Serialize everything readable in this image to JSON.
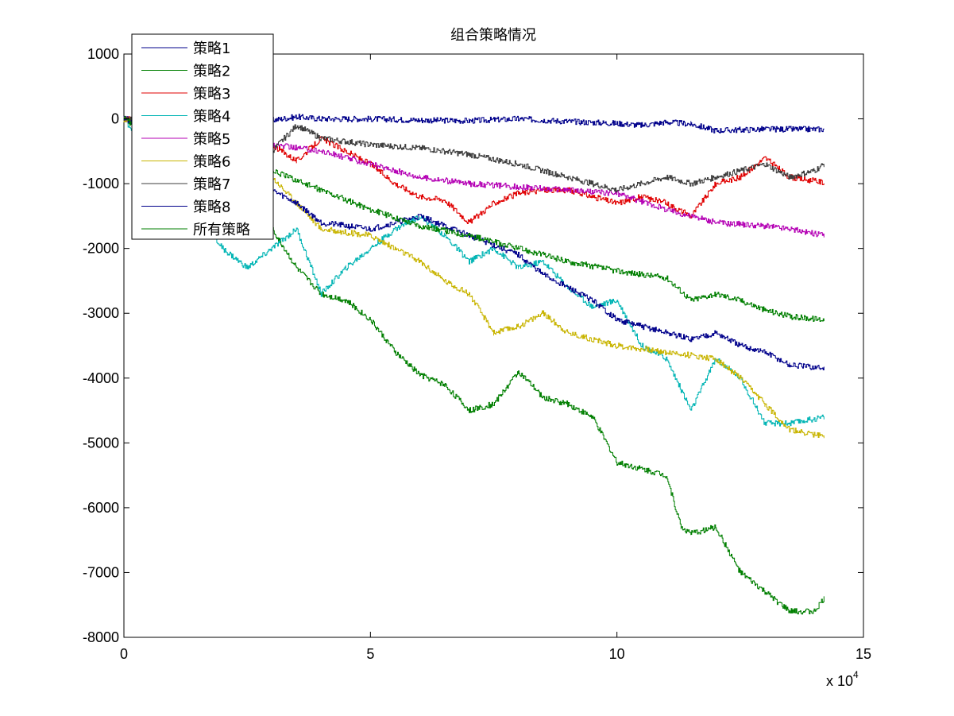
{
  "chart_data": {
    "type": "line",
    "title": "组合策略情况",
    "xlabel": "",
    "ylabel": "",
    "x_exponent_label": "x 10",
    "x_exponent_sup": "4",
    "xlim": [
      0,
      15
    ],
    "ylim": [
      -8000,
      1000
    ],
    "xticks": [
      0,
      5,
      10,
      15
    ],
    "xtick_labels": [
      "0",
      "5",
      "10",
      "15"
    ],
    "yticks": [
      1000,
      0,
      -1000,
      -2000,
      -3000,
      -4000,
      -5000,
      -6000,
      -7000,
      -8000
    ],
    "ytick_labels": [
      "1000",
      "0",
      "-1000",
      "-2000",
      "-3000",
      "-4000",
      "-5000",
      "-6000",
      "-7000",
      "-8000"
    ],
    "grid": false,
    "legend_position": "top-left",
    "series": [
      {
        "name": "策略1",
        "color": "#00008b",
        "x": [
          0,
          0.5,
          1.5,
          3.0,
          3.5,
          4.0,
          5.0,
          6.0,
          7.0,
          8.0,
          9.0,
          10.0,
          10.5,
          11.0,
          11.5,
          12.0,
          13.0,
          14.2
        ],
        "y": [
          0,
          -20,
          -50,
          -20,
          30,
          0,
          0,
          -20,
          -30,
          0,
          -40,
          -70,
          -100,
          -50,
          -80,
          -180,
          -160,
          -160
        ]
      },
      {
        "name": "策略2",
        "color": "#007f00",
        "x": [
          0,
          0.5,
          1.0,
          2.0,
          3.0,
          3.5,
          4.0,
          4.5,
          5.0,
          5.5,
          6.0,
          6.5,
          7.0,
          7.5,
          8.0,
          8.5,
          9.0,
          9.5,
          10.0,
          10.5,
          11.0,
          11.3,
          11.5,
          12.0,
          12.5,
          13.0,
          13.5,
          14.0,
          14.2
        ],
        "y": [
          0,
          -400,
          -800,
          -1200,
          -1700,
          -2300,
          -2700,
          -2800,
          -3100,
          -3600,
          -3950,
          -4100,
          -4500,
          -4400,
          -3900,
          -4300,
          -4400,
          -4600,
          -5300,
          -5400,
          -5500,
          -6300,
          -6400,
          -6300,
          -7000,
          -7300,
          -7600,
          -7600,
          -7400
        ]
      },
      {
        "name": "策略3",
        "color": "#e00000",
        "x": [
          0,
          1.0,
          2.0,
          3.0,
          3.5,
          4.0,
          4.5,
          5.0,
          5.5,
          6.0,
          6.5,
          7.0,
          7.5,
          8.0,
          8.5,
          9.0,
          9.5,
          10.0,
          10.5,
          11.0,
          11.5,
          12.0,
          12.5,
          13.0,
          13.5,
          14.2
        ],
        "y": [
          0,
          -100,
          -250,
          -400,
          -650,
          -300,
          -500,
          -700,
          -1000,
          -1200,
          -1250,
          -1600,
          -1300,
          -1150,
          -1100,
          -1100,
          -1200,
          -1300,
          -1200,
          -1300,
          -1500,
          -1000,
          -900,
          -600,
          -900,
          -980
        ]
      },
      {
        "name": "策略4",
        "color": "#00b4b4",
        "x": [
          0,
          0.5,
          1.0,
          1.5,
          2.0,
          2.5,
          3.0,
          3.5,
          4.0,
          4.5,
          5.0,
          5.5,
          6.0,
          6.5,
          7.0,
          7.5,
          8.0,
          8.5,
          9.0,
          9.5,
          10.0,
          10.5,
          11.0,
          11.5,
          12.0,
          12.5,
          13.0,
          13.5,
          14.2
        ],
        "y": [
          0,
          -500,
          -1000,
          -1500,
          -2000,
          -2300,
          -2000,
          -1700,
          -2700,
          -2300,
          -2000,
          -1700,
          -1500,
          -1800,
          -2200,
          -2000,
          -2300,
          -2200,
          -2600,
          -2900,
          -2800,
          -3500,
          -3700,
          -4500,
          -3700,
          -4000,
          -4700,
          -4700,
          -4600
        ]
      },
      {
        "name": "策略5",
        "color": "#b400b4",
        "x": [
          0,
          1.0,
          2.0,
          3.0,
          4.0,
          5.0,
          6.0,
          7.0,
          8.0,
          9.0,
          10.0,
          11.0,
          12.0,
          13.0,
          13.5,
          14.2
        ],
        "y": [
          0,
          -150,
          -300,
          -400,
          -500,
          -700,
          -900,
          -1000,
          -1050,
          -1100,
          -1150,
          -1400,
          -1600,
          -1650,
          -1700,
          -1800
        ]
      },
      {
        "name": "策略6",
        "color": "#c8b400",
        "x": [
          0,
          1.0,
          2.0,
          3.0,
          3.5,
          4.0,
          5.0,
          5.5,
          6.0,
          6.5,
          7.0,
          7.5,
          8.0,
          8.5,
          9.0,
          10.0,
          11.0,
          12.0,
          12.5,
          13.0,
          13.5,
          14.2
        ],
        "y": [
          0,
          -300,
          -700,
          -900,
          -1300,
          -1700,
          -1800,
          -2000,
          -2200,
          -2500,
          -2700,
          -3300,
          -3200,
          -3000,
          -3300,
          -3500,
          -3600,
          -3700,
          -4000,
          -4400,
          -4800,
          -4900
        ]
      },
      {
        "name": "策略7",
        "color": "#3c3c3c",
        "x": [
          0,
          1.0,
          2.0,
          3.0,
          3.5,
          4.0,
          5.0,
          6.0,
          7.0,
          8.0,
          9.0,
          10.0,
          11.0,
          11.5,
          12.0,
          12.5,
          13.0,
          13.5,
          14.0,
          14.2
        ],
        "y": [
          0,
          -100,
          -300,
          -500,
          -100,
          -300,
          -400,
          -450,
          -550,
          -700,
          -900,
          -1100,
          -900,
          -1000,
          -900,
          -800,
          -700,
          -900,
          -800,
          -700
        ]
      },
      {
        "name": "策略8",
        "color": "#00008b",
        "x": [
          0,
          1.0,
          2.0,
          3.0,
          3.5,
          4.0,
          5.0,
          6.0,
          7.0,
          8.0,
          8.5,
          9.0,
          9.5,
          10.0,
          10.5,
          11.0,
          11.5,
          12.0,
          12.5,
          13.0,
          13.5,
          14.2
        ],
        "y": [
          0,
          -300,
          -700,
          -1100,
          -1300,
          -1600,
          -1700,
          -1500,
          -1800,
          -2100,
          -2400,
          -2600,
          -2800,
          -3100,
          -3200,
          -3300,
          -3400,
          -3300,
          -3500,
          -3600,
          -3800,
          -3850
        ]
      },
      {
        "name": "所有策略",
        "color": "#007f00",
        "x": [
          0,
          1.0,
          2.0,
          3.0,
          4.0,
          5.0,
          6.0,
          7.0,
          8.0,
          9.0,
          10.0,
          11.0,
          11.5,
          12.0,
          12.5,
          13.0,
          13.5,
          14.2
        ],
        "y": [
          0,
          -300,
          -550,
          -800,
          -1100,
          -1400,
          -1650,
          -1800,
          -2000,
          -2200,
          -2350,
          -2450,
          -2800,
          -2700,
          -2800,
          -2950,
          -3050,
          -3100
        ]
      }
    ]
  }
}
